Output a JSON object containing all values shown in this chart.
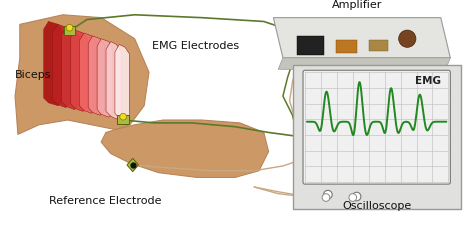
{
  "background_color": "#ffffff",
  "arm_color": "#cc9966",
  "arm_shadow": "#b8845a",
  "muscle_colors": [
    "#aa1111",
    "#bb2222",
    "#cc3333",
    "#dd4444",
    "#ee6666",
    "#f08888",
    "#f4aaaa",
    "#f8cccc",
    "#fce8e8"
  ],
  "wire_green": "#5a7a2a",
  "wire_tan": "#c8a882",
  "amp_top_color": "#e8e8e4",
  "amp_side_color": "#c8c8c0",
  "osc_outer_color": "#e0e0de",
  "osc_screen_color": "#e8e8e8",
  "osc_screen_border": "#888888",
  "grid_color": "#aaaaaa",
  "emg_color": "#228822",
  "label_amplifier": "Amplifier",
  "label_emg_electrodes": "EMG Electrodes",
  "label_biceps": "Biceps",
  "label_reference": "Reference Electrode",
  "label_oscilloscope": "Oscilloscope",
  "label_emg": "EMG",
  "figsize": [
    4.74,
    2.31
  ],
  "dpi": 100
}
